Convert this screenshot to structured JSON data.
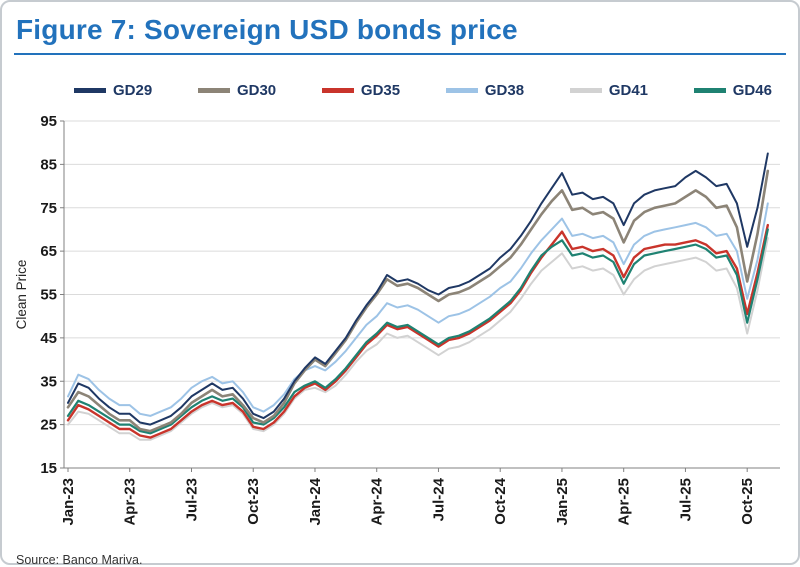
{
  "figure": {
    "title": "Figure 7: Sovereign USD bonds price"
  },
  "source": {
    "text": "Source: Banco Mariva."
  },
  "colors": {
    "title_blue": "#2272bc",
    "axis_line": "#808080",
    "grid_line": "#dbdbdb",
    "tick_label": "#1a1a1a"
  },
  "chart_data": {
    "type": "line",
    "title": "Sovereign USD bonds price",
    "ylabel": "Clean Price",
    "ylim": [
      15,
      95
    ],
    "yticks": [
      15,
      25,
      35,
      45,
      55,
      65,
      75,
      85,
      95
    ],
    "grid": "horizontal",
    "legend_position": "top",
    "x": [
      0,
      0.5,
      1,
      1.5,
      2,
      2.5,
      3,
      3.5,
      4,
      4.5,
      5,
      5.5,
      6,
      6.5,
      7,
      7.5,
      8,
      8.5,
      9,
      9.5,
      10,
      10.5,
      11,
      11.5,
      12,
      12.5,
      13,
      13.5,
      14,
      14.5,
      15,
      15.5,
      16,
      16.5,
      17,
      17.5,
      18,
      18.5,
      19,
      19.5,
      20,
      20.5,
      21,
      21.5,
      22,
      22.5,
      23,
      23.5,
      24,
      24.5,
      25,
      25.5,
      26,
      26.5,
      27,
      27.5,
      28,
      28.5,
      29,
      29.5,
      30,
      30.5,
      31,
      31.5,
      32,
      32.5,
      33,
      33.5,
      34
    ],
    "xticks": [
      {
        "pos": 0,
        "label": "Jan-23"
      },
      {
        "pos": 3,
        "label": "Apr-23"
      },
      {
        "pos": 6,
        "label": "Jul-23"
      },
      {
        "pos": 9,
        "label": "Oct-23"
      },
      {
        "pos": 12,
        "label": "Jan-24"
      },
      {
        "pos": 15,
        "label": "Apr-24"
      },
      {
        "pos": 18,
        "label": "Jul-24"
      },
      {
        "pos": 21,
        "label": "Oct-24"
      },
      {
        "pos": 24,
        "label": "Jan-25"
      },
      {
        "pos": 27,
        "label": "Apr-25"
      },
      {
        "pos": 30,
        "label": "Jul-25"
      },
      {
        "pos": 33,
        "label": "Oct-25"
      }
    ],
    "series": [
      {
        "name": "GD29",
        "color": "#1f3864",
        "values": [
          30,
          34.5,
          33.5,
          31,
          29,
          27.5,
          27.5,
          25.5,
          25,
          26,
          27,
          29,
          31.5,
          33,
          34.5,
          33,
          33.5,
          31,
          27.5,
          26.5,
          28,
          31,
          35,
          38,
          40.5,
          39,
          42,
          45,
          49,
          52.5,
          55.5,
          59.5,
          58,
          58.5,
          57.5,
          56,
          55,
          56.5,
          57,
          58,
          59.5,
          61,
          63.5,
          65.5,
          68.5,
          72,
          76,
          79.5,
          83,
          78,
          78.5,
          77,
          77.5,
          76,
          71,
          76,
          78,
          79,
          79.5,
          80,
          82,
          83.5,
          82,
          80,
          80.5,
          76,
          66,
          75,
          87.5
        ]
      },
      {
        "name": "GD30",
        "color": "#8c8477",
        "values": [
          29,
          32.5,
          31.5,
          29.5,
          27.5,
          26,
          26,
          24,
          23.5,
          24.5,
          25.5,
          27.5,
          30,
          31.5,
          33,
          31.5,
          32,
          29.5,
          26.5,
          25.5,
          27,
          30,
          34.5,
          37.5,
          40,
          38.5,
          41.5,
          44.5,
          48.5,
          52,
          55,
          58.5,
          57,
          57.5,
          56.5,
          55,
          53.5,
          55,
          55.5,
          56.5,
          58,
          59.5,
          61.5,
          63.5,
          66.5,
          70,
          73.5,
          76.5,
          79,
          74.5,
          75,
          73.5,
          74,
          72.5,
          67,
          72,
          74,
          75,
          75.5,
          76,
          77.5,
          79,
          77.5,
          75,
          75.5,
          70.5,
          58,
          69,
          83.5
        ]
      },
      {
        "name": "GD35",
        "color": "#c9342b",
        "values": [
          26,
          29.5,
          28.5,
          27,
          25.5,
          24,
          24,
          22.5,
          22,
          23,
          24,
          26,
          28,
          29.5,
          30.5,
          29.5,
          30,
          28,
          24.5,
          24,
          25.5,
          28,
          31.5,
          33.5,
          34.5,
          33,
          35,
          37.5,
          40.5,
          43.5,
          45.5,
          48,
          47,
          47.5,
          46,
          44.5,
          43,
          44.5,
          45,
          46,
          47.5,
          49,
          51,
          53,
          56,
          60,
          63.5,
          66.5,
          69.5,
          65.5,
          66,
          65,
          65.5,
          64,
          59,
          63.5,
          65.5,
          66,
          66.5,
          66.5,
          67,
          67.5,
          66.5,
          64.5,
          65,
          61,
          50.5,
          60,
          71
        ]
      },
      {
        "name": "GD38",
        "color": "#9dc3e6",
        "values": [
          31.5,
          36.5,
          35.5,
          33,
          31,
          29.5,
          29.5,
          27.5,
          27,
          28,
          29,
          31,
          33.5,
          35,
          36,
          34.5,
          35,
          32.5,
          29,
          28,
          29.5,
          32,
          35.5,
          37.5,
          38.5,
          37.5,
          39.5,
          42,
          45,
          48,
          50,
          53,
          52,
          52.5,
          51.5,
          50,
          48.5,
          50,
          50.5,
          51.5,
          53,
          54.5,
          56.5,
          58,
          61,
          64.5,
          67.5,
          70,
          72.5,
          68.5,
          69,
          68,
          68.5,
          67,
          62,
          66.5,
          68.5,
          69.5,
          70,
          70.5,
          71,
          71.5,
          70.5,
          68.5,
          69,
          65,
          54,
          63,
          76
        ]
      },
      {
        "name": "GD41",
        "color": "#d2d2d2",
        "values": [
          25,
          28,
          27.5,
          26,
          24.5,
          23,
          23,
          21.5,
          21.5,
          22.5,
          23.5,
          25.5,
          27.5,
          29,
          30,
          29,
          29.5,
          27.5,
          24,
          23.5,
          25,
          27.5,
          31,
          33,
          33.5,
          32.5,
          34,
          36.5,
          39.5,
          42,
          43.5,
          46,
          45,
          45.5,
          44,
          42.5,
          41,
          42.5,
          43,
          44,
          45.5,
          47,
          49,
          51,
          54,
          57.5,
          60.5,
          62.5,
          64.5,
          61,
          61.5,
          60.5,
          61,
          59.5,
          55,
          58.5,
          60.5,
          61.5,
          62,
          62.5,
          63,
          63.5,
          62.5,
          60.5,
          61,
          56.5,
          46,
          56,
          68
        ]
      },
      {
        "name": "GD46",
        "color": "#1f8272",
        "values": [
          27,
          30.5,
          29.5,
          28,
          26.5,
          25,
          25,
          23.5,
          23,
          24,
          25,
          27,
          29,
          30.5,
          31.5,
          30.5,
          31,
          29,
          25.5,
          25,
          26.5,
          29,
          32.5,
          34,
          35,
          33.5,
          35.5,
          38,
          41,
          44,
          46,
          48.5,
          47.5,
          48,
          46.5,
          45,
          43.5,
          45,
          45.5,
          46.5,
          48,
          49.5,
          51.5,
          53.5,
          56.5,
          60.5,
          64,
          66,
          67.5,
          64,
          64.5,
          63.5,
          64,
          62.5,
          57.5,
          62,
          64,
          64.5,
          65,
          65.5,
          66,
          66.5,
          65.5,
          63.5,
          64,
          59.5,
          48.5,
          58.5,
          70
        ]
      }
    ]
  }
}
